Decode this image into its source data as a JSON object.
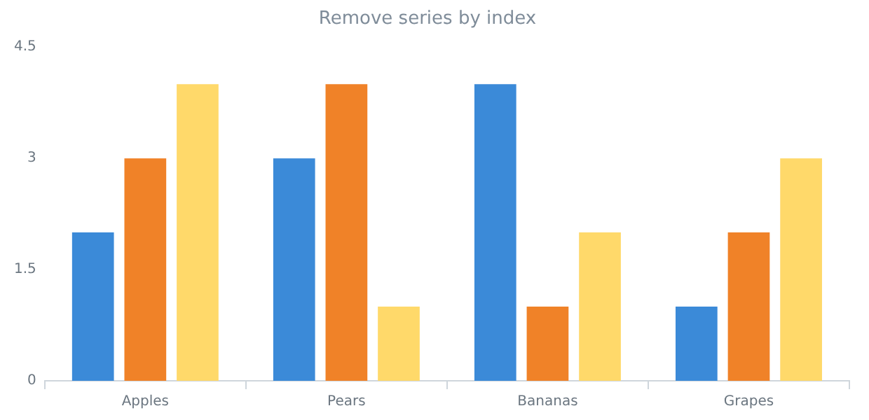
{
  "chart_data": {
    "type": "bar",
    "title": "Remove series by index",
    "categories": [
      "Apples",
      "Pears",
      "Bananas",
      "Grapes"
    ],
    "series": [
      {
        "color": "#3b8ad8",
        "values": [
          2,
          3,
          4,
          1
        ]
      },
      {
        "color": "#f08228",
        "values": [
          3,
          4,
          1,
          2
        ]
      },
      {
        "color": "#ffd96a",
        "values": [
          4,
          1,
          2,
          3
        ]
      }
    ],
    "ylim": [
      0,
      4.5
    ],
    "yticks": [
      0,
      1.5,
      3,
      4.5
    ],
    "grid": false,
    "legend": false
  }
}
